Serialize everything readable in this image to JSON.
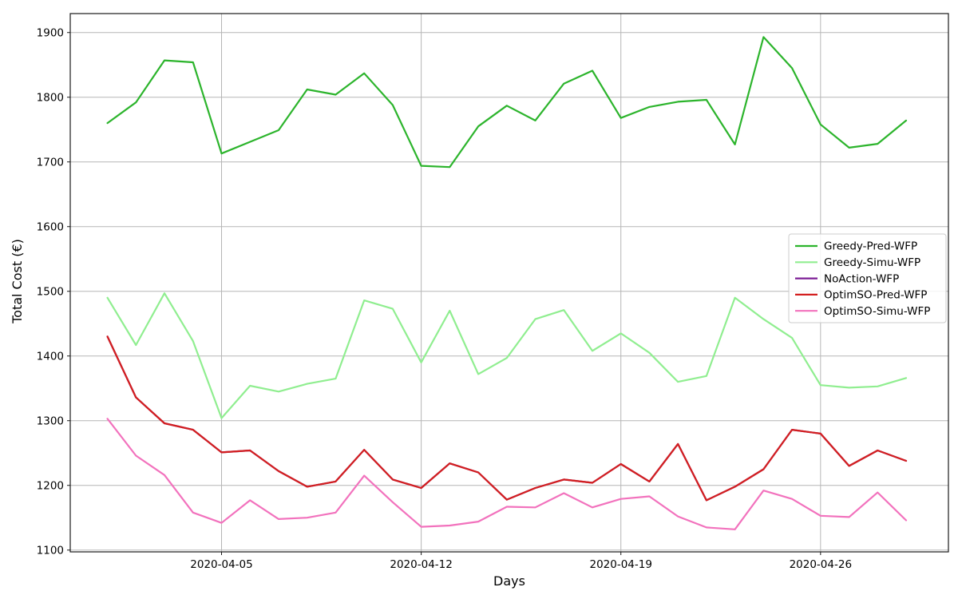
{
  "chart_data": {
    "type": "line",
    "title": "",
    "xlabel": "Days",
    "ylabel": "Total Cost (€)",
    "grid": true,
    "legend_position": "center right",
    "x_dates": [
      "2020-04-01",
      "2020-04-02",
      "2020-04-03",
      "2020-04-04",
      "2020-04-05",
      "2020-04-06",
      "2020-04-07",
      "2020-04-08",
      "2020-04-09",
      "2020-04-10",
      "2020-04-11",
      "2020-04-12",
      "2020-04-13",
      "2020-04-14",
      "2020-04-15",
      "2020-04-16",
      "2020-04-17",
      "2020-04-18",
      "2020-04-19",
      "2020-04-20",
      "2020-04-21",
      "2020-04-22",
      "2020-04-23",
      "2020-04-24",
      "2020-04-25",
      "2020-04-26",
      "2020-04-27",
      "2020-04-28",
      "2020-04-29"
    ],
    "x_tick_labels": [
      "2020-04-05",
      "2020-04-12",
      "2020-04-19",
      "2020-04-26"
    ],
    "x_tick_indices": [
      4,
      11,
      18,
      25
    ],
    "y_ticks": [
      1100,
      1200,
      1300,
      1400,
      1500,
      1600,
      1700,
      1800,
      1900
    ],
    "ylim": [
      1097,
      1930
    ],
    "series": [
      {
        "name": "Greedy-Pred-WFP",
        "color": "#2cb42c",
        "values": [
          1760,
          1792,
          1857,
          1854,
          1713,
          1731,
          1749,
          1812,
          1804,
          1837,
          1788,
          1694,
          1692,
          1755,
          1787,
          1764,
          1821,
          1841,
          1768,
          1785,
          1793,
          1796,
          1727,
          1893,
          1845,
          1758,
          1722,
          1728,
          1764
        ]
      },
      {
        "name": "Greedy-Simu-WFP",
        "color": "#90ee90",
        "values": [
          1490,
          1417,
          1497,
          1423,
          1304,
          1354,
          1345,
          1357,
          1365,
          1486,
          1473,
          1390,
          1470,
          1372,
          1397,
          1457,
          1471,
          1408,
          1435,
          1405,
          1360,
          1369,
          1490,
          1457,
          1428,
          1355,
          1351,
          1353,
          1366
        ]
      },
      {
        "name": "NoAction-WFP",
        "color": "#7d1e96",
        "note": "not visible in plot area; coincides with and is hidden beneath OptimSO-Pred-WFP",
        "values": [
          1430,
          1336,
          1296,
          1286,
          1251,
          1254,
          1222,
          1198,
          1206,
          1255,
          1209,
          1196,
          1234,
          1220,
          1178,
          1196,
          1209,
          1204,
          1233,
          1206,
          1264,
          1177,
          1198,
          1225,
          1286,
          1280,
          1230,
          1254,
          1238
        ]
      },
      {
        "name": "OptimSO-Pred-WFP",
        "color": "#d31f1f",
        "values": [
          1430,
          1336,
          1296,
          1286,
          1251,
          1254,
          1222,
          1198,
          1206,
          1255,
          1209,
          1196,
          1234,
          1220,
          1178,
          1196,
          1209,
          1204,
          1233,
          1206,
          1264,
          1177,
          1198,
          1225,
          1286,
          1280,
          1230,
          1254,
          1238
        ]
      },
      {
        "name": "OptimSO-Simu-WFP",
        "color": "#f272bd",
        "values": [
          1303,
          1246,
          1216,
          1158,
          1142,
          1177,
          1148,
          1150,
          1158,
          1215,
          1174,
          1136,
          1138,
          1144,
          1167,
          1166,
          1188,
          1166,
          1179,
          1183,
          1152,
          1135,
          1132,
          1192,
          1179,
          1153,
          1151,
          1189,
          1146
        ]
      }
    ]
  },
  "colors": {
    "background": "#ffffff",
    "grid": "#b6b6b6",
    "axis": "#1a1a1a",
    "text": "#000000",
    "legend_border": "#cccccc",
    "legend_background": "#ffffff"
  }
}
